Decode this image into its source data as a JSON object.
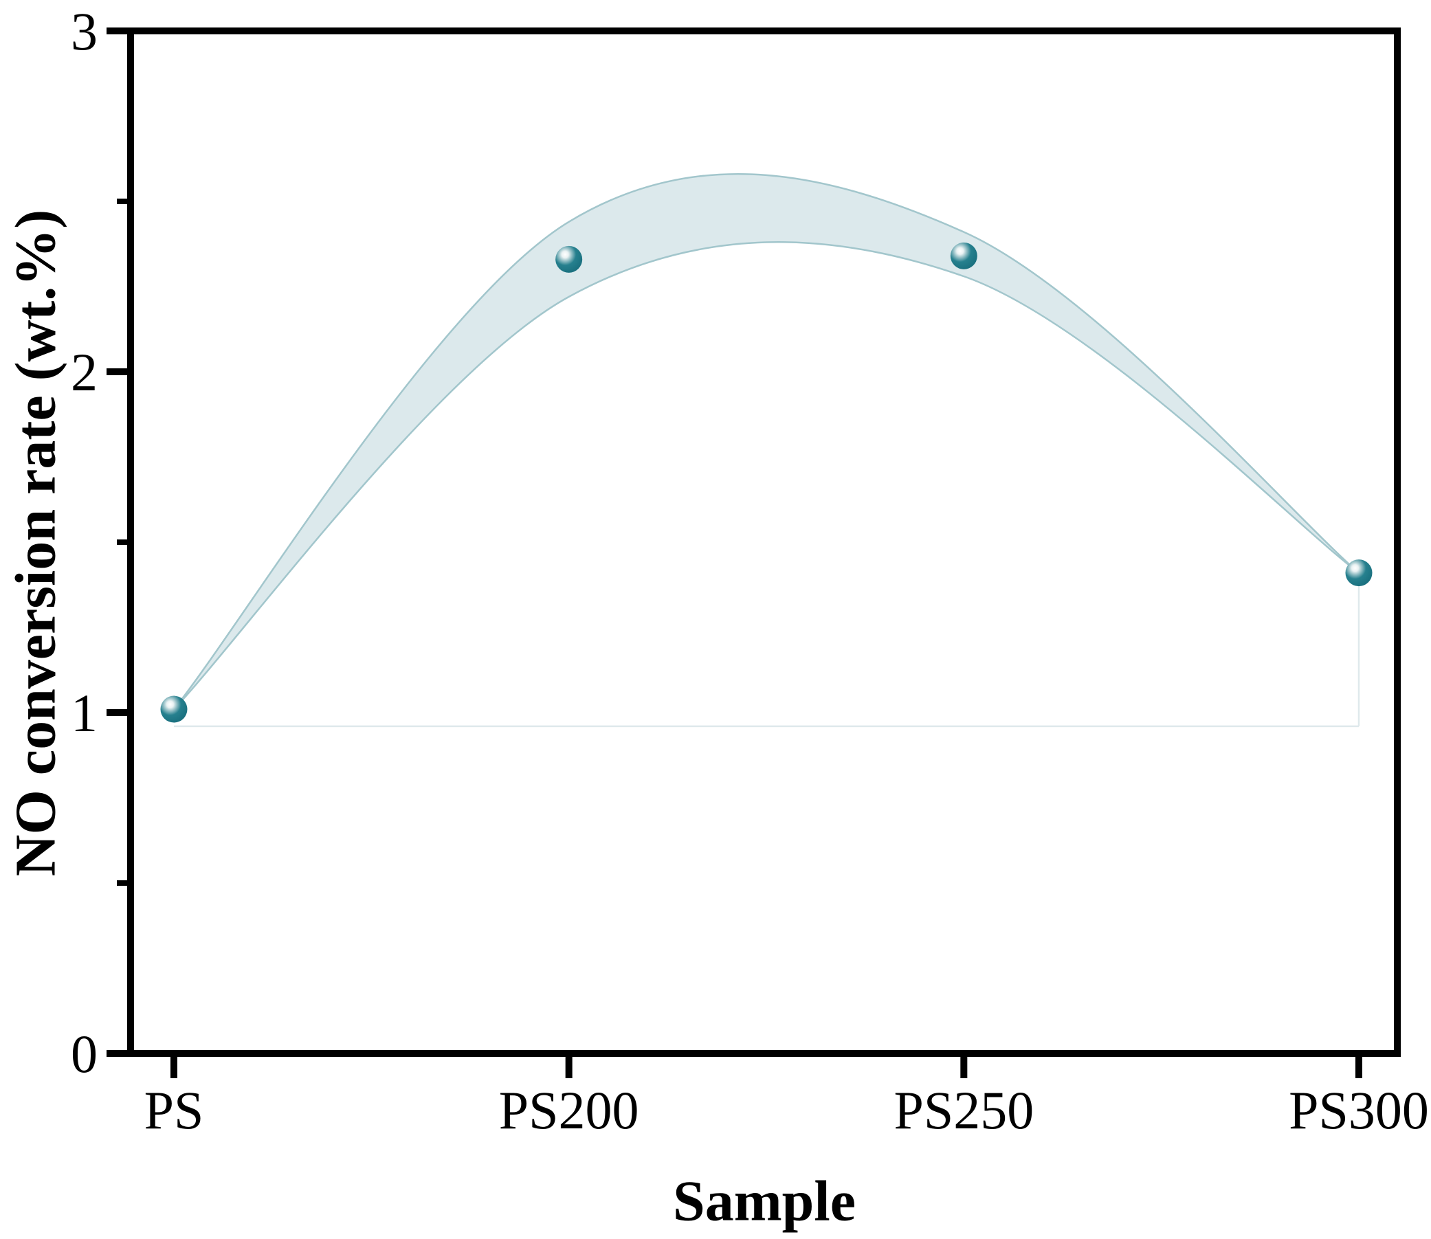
{
  "chart_data": {
    "type": "line",
    "categories": [
      "PS",
      "PS200",
      "PS250",
      "PS300"
    ],
    "series": [
      {
        "name": "NO conversion rate",
        "values": [
          1.01,
          2.33,
          2.34,
          1.41
        ]
      }
    ],
    "band": {
      "upper": [
        1.01,
        2.44,
        2.41,
        1.41
      ],
      "lower": [
        1.01,
        2.22,
        2.28,
        1.41
      ]
    },
    "fill_outline_baseline": 0.96,
    "xlabel": "Sample",
    "ylabel": "NO conversion rate (wt.%)",
    "ylim": [
      0,
      3
    ],
    "yticks": [
      0,
      1,
      2,
      3
    ],
    "yminorticks": [
      0.5,
      1.5,
      2.5
    ],
    "grid": false,
    "legend": "none",
    "marker": "sphere-3d"
  },
  "style": {
    "axis_color": "#000000",
    "band_fill": "#dce9ec",
    "band_edge": "#a2c6cc",
    "faint_line": "#dfe9ec",
    "point_body": "#26808e",
    "point_dark": "#176c7b",
    "point_ring": "#9cc4ca",
    "point_highlight": "#ffffff",
    "text_color": "#000000"
  }
}
